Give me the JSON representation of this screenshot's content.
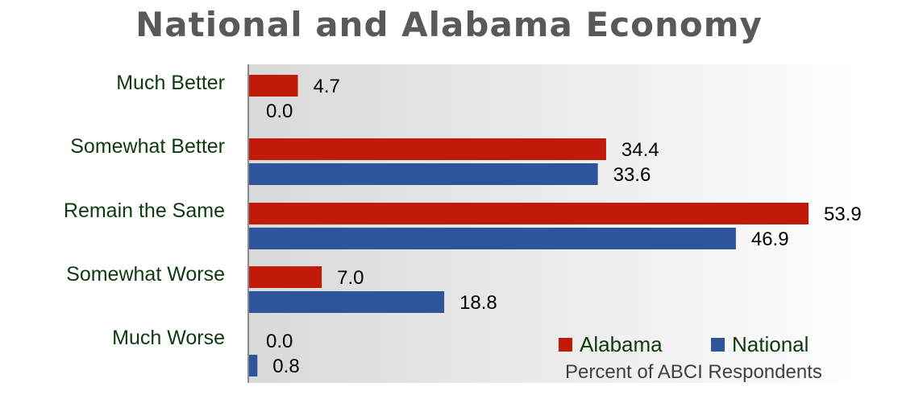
{
  "chart_data": {
    "type": "bar",
    "orientation": "horizontal",
    "title": "National and Alabama Economy",
    "categories": [
      "Much Better",
      "Somewhat Better",
      "Remain the Same",
      "Somewhat Worse",
      "Much Worse"
    ],
    "series": [
      {
        "name": "Alabama",
        "values": [
          4.7,
          34.4,
          53.9,
          7.0,
          0.0
        ],
        "color": "#c11a0a"
      },
      {
        "name": "National",
        "values": [
          0.0,
          33.6,
          46.9,
          18.8,
          0.8
        ],
        "color": "#2e559c"
      }
    ],
    "value_format": "0.0",
    "xlim": [
      0,
      55
    ],
    "legend_placement": "bottom-right",
    "note": "Percent of ABCI Respondents",
    "grid": false
  }
}
